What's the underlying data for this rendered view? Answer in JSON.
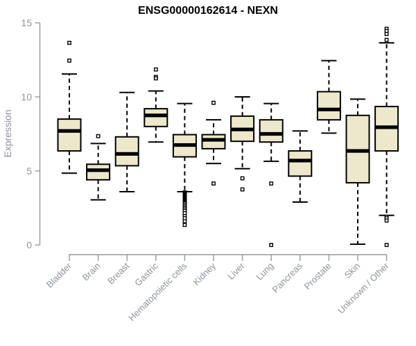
{
  "chart_data": {
    "type": "boxplot",
    "title": "ENSG00000162614 - NEXN",
    "ylabel": "Expression",
    "xlabel": "",
    "ylim": [
      0,
      15
    ],
    "yticks": [
      0,
      5,
      10,
      15
    ],
    "grid": false,
    "legend": null,
    "categories": [
      "Bladder",
      "Brain",
      "Breast",
      "Gastric",
      "Hematopoietic cells",
      "Kidney",
      "Liver",
      "Lung",
      "Pancreas",
      "Prostate",
      "Skin",
      "Unknown / Other"
    ],
    "boxes": [
      {
        "category": "Bladder",
        "whisker_low": 4.85,
        "q1": 6.35,
        "median": 7.7,
        "q3": 8.5,
        "whisker_high": 11.55,
        "outliers": [
          13.65,
          12.45
        ]
      },
      {
        "category": "Brain",
        "whisker_low": 3.05,
        "q1": 4.4,
        "median": 5.05,
        "q3": 5.45,
        "whisker_high": 6.85,
        "outliers": [
          7.35
        ]
      },
      {
        "category": "Breast",
        "whisker_low": 3.6,
        "q1": 5.35,
        "median": 6.15,
        "q3": 7.3,
        "whisker_high": 10.3,
        "outliers": []
      },
      {
        "category": "Gastric",
        "whisker_low": 6.95,
        "q1": 8.0,
        "median": 8.75,
        "q3": 9.2,
        "whisker_high": 10.4,
        "outliers": [
          11.85,
          11.35,
          11.25
        ]
      },
      {
        "category": "Hematopoietic cells",
        "whisker_low": 3.6,
        "q1": 5.95,
        "median": 6.75,
        "q3": 7.45,
        "whisker_high": 9.55,
        "outliers": [
          3.55,
          3.5,
          3.45,
          3.4,
          3.35,
          3.3,
          3.25,
          3.2,
          3.15,
          3.1,
          3.05,
          3.0,
          2.95,
          2.9,
          2.85,
          2.8,
          2.7,
          2.6,
          2.5,
          2.4,
          2.3,
          2.15,
          1.95,
          1.8,
          1.6,
          1.35
        ]
      },
      {
        "category": "Kidney",
        "whisker_low": 5.5,
        "q1": 6.5,
        "median": 7.1,
        "q3": 7.45,
        "whisker_high": 8.45,
        "outliers": [
          9.6,
          4.15
        ]
      },
      {
        "category": "Liver",
        "whisker_low": 5.15,
        "q1": 7.0,
        "median": 7.8,
        "q3": 8.7,
        "whisker_high": 10.0,
        "outliers": [
          4.5,
          3.75
        ]
      },
      {
        "category": "Lung",
        "whisker_low": 5.65,
        "q1": 6.95,
        "median": 7.5,
        "q3": 8.45,
        "whisker_high": 9.55,
        "outliers": [
          4.15,
          0.0
        ]
      },
      {
        "category": "Pancreas",
        "whisker_low": 2.9,
        "q1": 4.65,
        "median": 5.7,
        "q3": 6.35,
        "whisker_high": 7.7,
        "outliers": []
      },
      {
        "category": "Prostate",
        "whisker_low": 7.55,
        "q1": 8.45,
        "median": 9.15,
        "q3": 10.35,
        "whisker_high": 12.45,
        "outliers": []
      },
      {
        "category": "Skin",
        "whisker_low": 0.05,
        "q1": 4.2,
        "median": 6.35,
        "q3": 8.75,
        "whisker_high": 9.85,
        "outliers": []
      },
      {
        "category": "Unknown / Other",
        "whisker_low": 2.0,
        "q1": 6.35,
        "median": 7.95,
        "q3": 9.35,
        "whisker_high": 13.65,
        "outliers": [
          14.6,
          14.45,
          14.25,
          13.85,
          1.9,
          1.8,
          1.65,
          0.0
        ]
      }
    ],
    "colors": {
      "box_fill": "#EDE8CB",
      "box_border": "#000000",
      "median": "#000000",
      "whisker": "#000000",
      "axis": "#999999",
      "axis_text": "#8D939D",
      "title": "#000000"
    }
  }
}
